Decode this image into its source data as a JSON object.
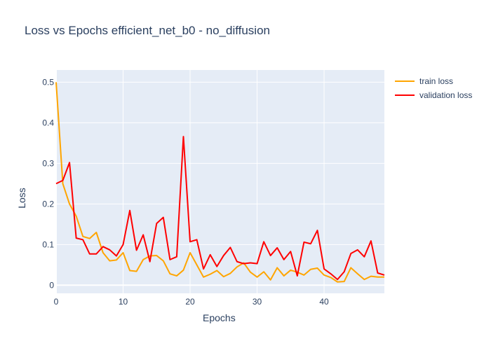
{
  "chart_data": {
    "type": "line",
    "title": "Loss vs Epochs efficient_net_b0 - no_diffusion",
    "xlabel": "Epochs",
    "ylabel": "Loss",
    "xlim": [
      0,
      49
    ],
    "ylim": [
      -0.02,
      0.53
    ],
    "xticks": [
      0,
      10,
      20,
      30,
      40
    ],
    "yticks": [
      0,
      0.1,
      0.2,
      0.3,
      0.4,
      0.5
    ],
    "xtick_labels": [
      "0",
      "10",
      "20",
      "30",
      "40"
    ],
    "ytick_labels": [
      "0",
      "0.1",
      "0.2",
      "0.3",
      "0.4",
      "0.5"
    ],
    "grid": true,
    "legend_position": "top-right",
    "background": "#e5ecf6",
    "series": [
      {
        "name": "train loss",
        "color": "#ffa500",
        "x": [
          0,
          1,
          2,
          3,
          4,
          5,
          6,
          7,
          8,
          9,
          10,
          11,
          12,
          13,
          14,
          15,
          16,
          17,
          18,
          19,
          20,
          21,
          22,
          23,
          24,
          25,
          26,
          27,
          28,
          29,
          30,
          31,
          32,
          33,
          34,
          35,
          36,
          37,
          38,
          39,
          40,
          41,
          42,
          43,
          44,
          45,
          46,
          47,
          48,
          49
        ],
        "values": [
          0.5,
          0.25,
          0.2,
          0.17,
          0.12,
          0.115,
          0.13,
          0.08,
          0.06,
          0.062,
          0.08,
          0.036,
          0.034,
          0.063,
          0.072,
          0.073,
          0.06,
          0.028,
          0.023,
          0.037,
          0.08,
          0.05,
          0.02,
          0.027,
          0.036,
          0.021,
          0.029,
          0.045,
          0.055,
          0.032,
          0.02,
          0.033,
          0.013,
          0.043,
          0.023,
          0.037,
          0.032,
          0.025,
          0.039,
          0.042,
          0.025,
          0.019,
          0.008,
          0.009,
          0.043,
          0.028,
          0.014,
          0.022,
          0.02,
          0.02
        ]
      },
      {
        "name": "validation loss",
        "color": "#ff0000",
        "x": [
          0,
          1,
          2,
          3,
          4,
          5,
          6,
          7,
          8,
          9,
          10,
          11,
          12,
          13,
          14,
          15,
          16,
          17,
          18,
          19,
          20,
          21,
          22,
          23,
          24,
          25,
          26,
          27,
          28,
          29,
          30,
          31,
          32,
          33,
          34,
          35,
          36,
          37,
          38,
          39,
          40,
          41,
          42,
          43,
          44,
          45,
          46,
          47,
          48,
          49
        ],
        "values": [
          0.25,
          0.258,
          0.302,
          0.116,
          0.112,
          0.077,
          0.077,
          0.095,
          0.087,
          0.072,
          0.1,
          0.184,
          0.086,
          0.124,
          0.058,
          0.152,
          0.167,
          0.063,
          0.07,
          0.366,
          0.107,
          0.112,
          0.04,
          0.075,
          0.046,
          0.073,
          0.093,
          0.058,
          0.053,
          0.055,
          0.053,
          0.107,
          0.073,
          0.092,
          0.063,
          0.083,
          0.023,
          0.106,
          0.102,
          0.135,
          0.04,
          0.028,
          0.014,
          0.033,
          0.078,
          0.087,
          0.07,
          0.109,
          0.03,
          0.025
        ]
      }
    ]
  }
}
